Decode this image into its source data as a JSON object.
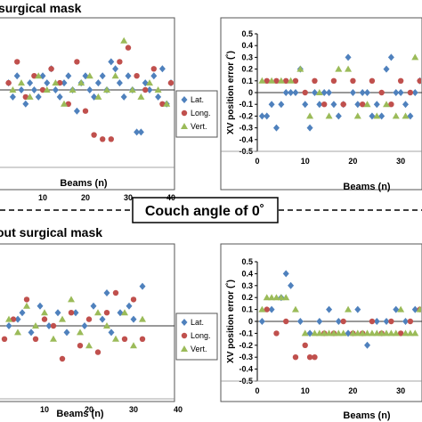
{
  "headings": {
    "top": "surgical mask",
    "bottom": "out surgical mask",
    "banner": "Couch angle of 0˚"
  },
  "series_styles": [
    {
      "name": "Lat.",
      "color": "#4f81bd",
      "marker": "diamond"
    },
    {
      "name": "Long.",
      "color": "#c0504d",
      "marker": "circle"
    },
    {
      "name": "Vert.",
      "color": "#9bbb59",
      "marker": "triangle"
    }
  ],
  "chart_data": [
    {
      "type": "scatter",
      "panel": "top-left",
      "title": "",
      "xlabel": "Beams (n)",
      "ylabel": "",
      "xlim": [
        0,
        40
      ],
      "ylim": [
        -0.5,
        0.5
      ],
      "xticks": [
        "10",
        "20",
        "30",
        "40"
      ],
      "legend_placement": "right",
      "series": [
        {
          "name": "Lat.",
          "x": [
            2,
            3,
            4,
            5,
            6,
            7,
            8,
            9,
            10,
            11,
            12,
            13,
            14,
            15,
            16,
            17,
            18,
            19,
            20,
            21,
            22,
            23,
            24,
            25,
            26,
            27,
            28,
            29,
            30,
            31,
            32,
            33,
            34,
            35,
            36,
            37,
            38,
            39,
            40
          ],
          "y": [
            0.05,
            -0.05,
            0.1,
            0.0,
            -0.1,
            0.05,
            0.0,
            -0.05,
            0.1,
            0.05,
            0.15,
            0.0,
            -0.05,
            0.05,
            0.1,
            0.0,
            -0.15,
            0.05,
            0.1,
            0.0,
            -0.05,
            0.05,
            0.1,
            0.0,
            0.2,
            0.15,
            0.05,
            -0.05,
            0.1,
            0.0,
            -0.3,
            -0.3,
            0.05,
            0.0,
            0.1,
            -0.05,
            0.15,
            -0.1,
            0.05
          ]
        },
        {
          "name": "Long.",
          "x": [
            2,
            4,
            6,
            8,
            10,
            12,
            14,
            16,
            18,
            20,
            22,
            24,
            26,
            28,
            30,
            32,
            34,
            36,
            38,
            40
          ],
          "y": [
            0.05,
            0.2,
            -0.05,
            0.1,
            0.0,
            0.15,
            0.05,
            -0.1,
            0.2,
            -0.15,
            -0.32,
            -0.35,
            -0.35,
            0.2,
            0.3,
            0.1,
            0.0,
            0.15,
            -0.1,
            0.05
          ]
        },
        {
          "name": "Vert.",
          "x": [
            3,
            5,
            7,
            9,
            11,
            13,
            15,
            17,
            19,
            21,
            23,
            25,
            27,
            29,
            31,
            33,
            35,
            37,
            39
          ],
          "y": [
            0.0,
            0.05,
            -0.05,
            0.1,
            0.0,
            0.05,
            -0.1,
            0.0,
            0.05,
            0.1,
            -0.05,
            0.0,
            0.1,
            0.35,
            0.0,
            -0.05,
            0.05,
            0.0,
            -0.1
          ]
        }
      ]
    },
    {
      "type": "scatter",
      "panel": "top-right",
      "title": "",
      "xlabel": "Beams (n)",
      "ylabel": "XV position error (˚)",
      "xlim": [
        0,
        35
      ],
      "ylim": [
        -0.5,
        0.5
      ],
      "xticks": [
        "0",
        "10",
        "20",
        "30"
      ],
      "yticks": [
        "0.5",
        "0.4",
        "0.3",
        "0.2",
        "0.1",
        "0",
        "-0.1",
        "-0.2",
        "-0.3",
        "-0.4",
        "-0.5"
      ],
      "series": [
        {
          "name": "Lat.",
          "x": [
            1,
            2,
            3,
            4,
            5,
            6,
            7,
            8,
            9,
            10,
            11,
            12,
            13,
            14,
            15,
            16,
            17,
            18,
            19,
            20,
            21,
            22,
            23,
            24,
            25,
            26,
            27,
            28,
            29,
            30,
            31,
            32,
            33,
            34
          ],
          "y": [
            -0.2,
            -0.2,
            -0.1,
            -0.3,
            -0.1,
            0.0,
            0.0,
            0.0,
            0.2,
            -0.1,
            -0.3,
            0.0,
            -0.1,
            0.0,
            0.0,
            -0.1,
            -0.2,
            -0.1,
            0.3,
            0.0,
            -0.1,
            0.0,
            0.0,
            -0.2,
            -0.1,
            -0.2,
            0.2,
            0.3,
            0.0,
            0.0,
            -0.1,
            -0.2,
            0.0,
            0.1
          ]
        },
        {
          "name": "Long.",
          "x": [
            2,
            4,
            6,
            8,
            10,
            12,
            14,
            16,
            18,
            20,
            22,
            24,
            26,
            28,
            30,
            32,
            34
          ],
          "y": [
            0.1,
            0.1,
            0.1,
            0.1,
            0.0,
            0.1,
            -0.1,
            0.1,
            -0.1,
            0.1,
            -0.1,
            0.1,
            0.0,
            -0.1,
            0.1,
            0.0,
            0.1
          ]
        },
        {
          "name": "Vert.",
          "x": [
            1,
            3,
            5,
            7,
            9,
            11,
            13,
            15,
            17,
            19,
            21,
            23,
            25,
            27,
            29,
            31,
            33
          ],
          "y": [
            0.1,
            0.1,
            0.1,
            0.1,
            0.2,
            -0.2,
            0.0,
            -0.2,
            0.2,
            0.2,
            -0.2,
            -0.1,
            -0.2,
            -0.1,
            -0.2,
            -0.2,
            0.3
          ]
        }
      ]
    },
    {
      "type": "scatter",
      "panel": "bottom-left",
      "title": "",
      "xlabel": "Beams (n)",
      "ylabel": "",
      "xlim": [
        0,
        40
      ],
      "ylim": [
        -0.5,
        0.5
      ],
      "xticks": [
        "10",
        "20",
        "30",
        "40"
      ],
      "legend_placement": "right",
      "series": [
        {
          "name": "Lat.",
          "x": [
            2,
            4,
            5,
            7,
            9,
            11,
            13,
            15,
            17,
            19,
            21,
            23,
            24,
            25,
            27,
            29,
            30,
            32
          ],
          "y": [
            0.0,
            0.05,
            0.1,
            -0.05,
            0.15,
            0.0,
            0.1,
            -0.05,
            0.1,
            0.0,
            0.15,
            0.05,
            0.25,
            -0.05,
            0.1,
            0.15,
            0.05,
            0.3
          ]
        },
        {
          "name": "Long.",
          "x": [
            1,
            3,
            6,
            8,
            10,
            12,
            14,
            16,
            18,
            20,
            22,
            24,
            26,
            28,
            30,
            32
          ],
          "y": [
            -0.1,
            0.05,
            0.2,
            -0.1,
            0.05,
            0.0,
            -0.25,
            0.1,
            -0.15,
            0.05,
            -0.2,
            0.1,
            0.25,
            -0.1,
            0.2,
            -0.1
          ]
        },
        {
          "name": "Vert.",
          "x": [
            2,
            4,
            6,
            8,
            10,
            12,
            14,
            16,
            18,
            20,
            22,
            24,
            26,
            28,
            30,
            32
          ],
          "y": [
            0.05,
            -0.05,
            0.15,
            0.0,
            0.1,
            -0.1,
            0.05,
            0.2,
            -0.05,
            -0.15,
            0.1,
            0.0,
            -0.1,
            0.1,
            -0.15,
            0.05
          ]
        }
      ]
    },
    {
      "type": "scatter",
      "panel": "bottom-right",
      "title": "",
      "xlabel": "Beams (n)",
      "ylabel": "XV position error (˚)",
      "xlim": [
        0,
        35
      ],
      "ylim": [
        -0.5,
        0.5
      ],
      "xticks": [
        "0",
        "10",
        "20",
        "30"
      ],
      "yticks": [
        "0.5",
        "0.4",
        "0.3",
        "0.2",
        "0.1",
        "0",
        "-0.1",
        "-0.2",
        "-0.3",
        "-0.4",
        "-0.5"
      ],
      "series": [
        {
          "name": "Lat.",
          "x": [
            1,
            3,
            5,
            6,
            7,
            9,
            11,
            13,
            15,
            17,
            19,
            21,
            23,
            25,
            27,
            29,
            31,
            33
          ],
          "y": [
            0.0,
            0.1,
            0.2,
            0.4,
            0.3,
            0.0,
            -0.1,
            0.0,
            0.1,
            0.0,
            -0.1,
            0.1,
            -0.2,
            0.0,
            0.0,
            0.1,
            0.0,
            0.1
          ]
        },
        {
          "name": "Long.",
          "x": [
            2,
            4,
            6,
            8,
            10,
            11,
            12,
            14,
            16,
            18,
            20,
            22,
            24,
            26,
            28,
            30,
            32,
            34
          ],
          "y": [
            0.1,
            -0.1,
            0.0,
            -0.3,
            -0.2,
            -0.3,
            -0.3,
            -0.1,
            -0.1,
            0.0,
            -0.1,
            -0.1,
            0.0,
            -0.1,
            0.0,
            -0.1,
            0.0,
            0.1
          ]
        },
        {
          "name": "Vert.",
          "x": [
            1,
            2,
            3,
            4,
            5,
            6,
            8,
            10,
            12,
            13,
            14,
            15,
            16,
            17,
            18,
            19,
            20,
            21,
            22,
            23,
            24,
            25,
            26,
            27,
            28,
            29,
            30,
            31,
            32,
            33,
            34
          ],
          "y": [
            0.1,
            0.2,
            0.2,
            0.2,
            0.2,
            0.2,
            0.1,
            -0.1,
            -0.1,
            -0.1,
            -0.1,
            -0.1,
            -0.1,
            -0.1,
            -0.1,
            0.1,
            -0.1,
            -0.1,
            -0.1,
            -0.1,
            -0.1,
            -0.1,
            -0.1,
            -0.1,
            -0.1,
            -0.1,
            0.1,
            -0.1,
            -0.1,
            -0.1,
            0.1
          ]
        }
      ]
    }
  ]
}
